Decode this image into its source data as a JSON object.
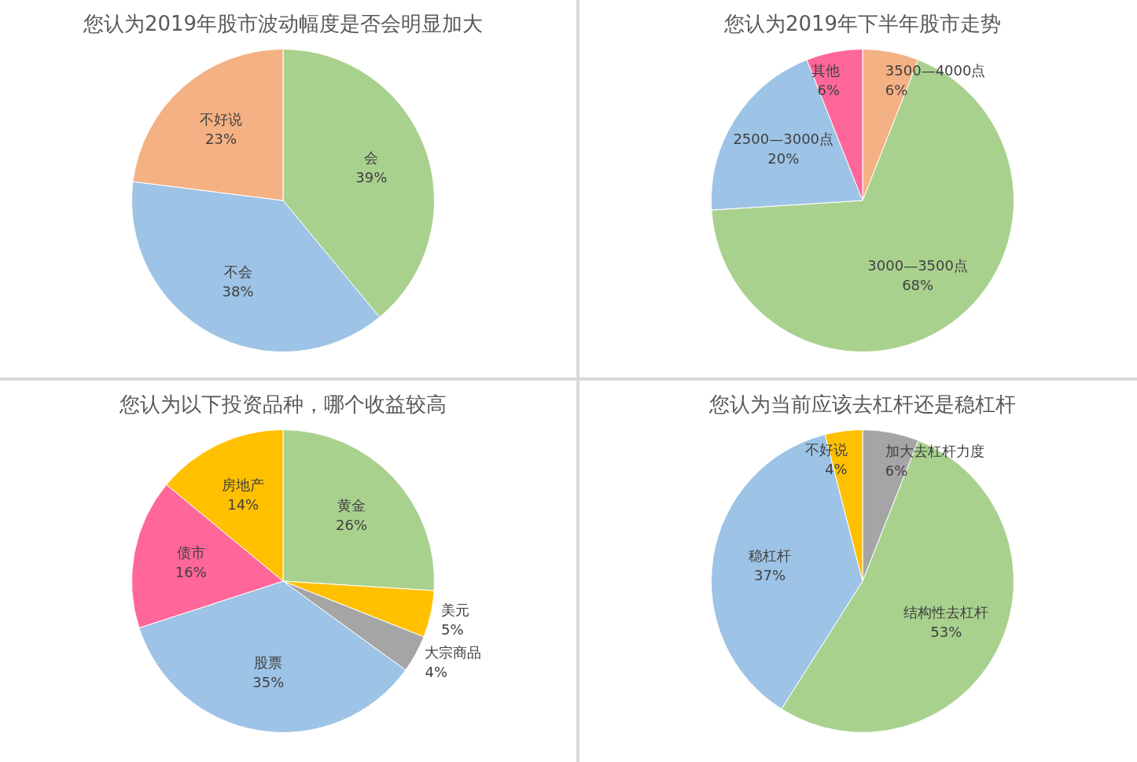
{
  "chart_data": [
    {
      "type": "pie",
      "title": "您认为2019年股市波动幅度是否会明显加大",
      "categories": [
        "会",
        "不会",
        "不好说"
      ],
      "values": [
        39,
        38,
        23
      ],
      "value_labels": [
        "39%",
        "38%",
        "23%"
      ],
      "colors": [
        "#a9d18e",
        "#9dc3e6",
        "#f4b183"
      ],
      "legend": false
    },
    {
      "type": "pie",
      "title": "您认为2019年下半年股市走势",
      "categories": [
        "3500—4000点",
        "3000—3500点",
        "2500—3000点",
        "其他"
      ],
      "values": [
        6,
        68,
        20,
        6
      ],
      "value_labels": [
        "6%",
        "68%",
        "20%",
        "6%"
      ],
      "colors": [
        "#f4b183",
        "#a9d18e",
        "#9dc3e6",
        "#ff6699"
      ],
      "legend": false
    },
    {
      "type": "pie",
      "title": "您认为以下投资品种，哪个收益较高",
      "categories": [
        "黄金",
        "美元",
        "大宗商品",
        "股票",
        "债市",
        "房地产"
      ],
      "values": [
        26,
        5,
        4,
        35,
        16,
        14
      ],
      "value_labels": [
        "26%",
        "5%",
        "4%",
        "35%",
        "16%",
        "14%"
      ],
      "colors": [
        "#a9d18e",
        "#ffc000",
        "#a5a5a5",
        "#9dc3e6",
        "#ff6699",
        "#ffc000"
      ],
      "legend": false
    },
    {
      "type": "pie",
      "title": "您认为当前应该去杠杆还是稳杠杆",
      "categories": [
        "加大去杠杆力度",
        "结构性去杠杆",
        "稳杠杆",
        "不好说"
      ],
      "values": [
        6,
        53,
        37,
        4
      ],
      "value_labels": [
        "6%",
        "53%",
        "37%",
        "4%"
      ],
      "colors": [
        "#a5a5a5",
        "#a9d18e",
        "#9dc3e6",
        "#ffc000"
      ],
      "legend": false
    }
  ]
}
